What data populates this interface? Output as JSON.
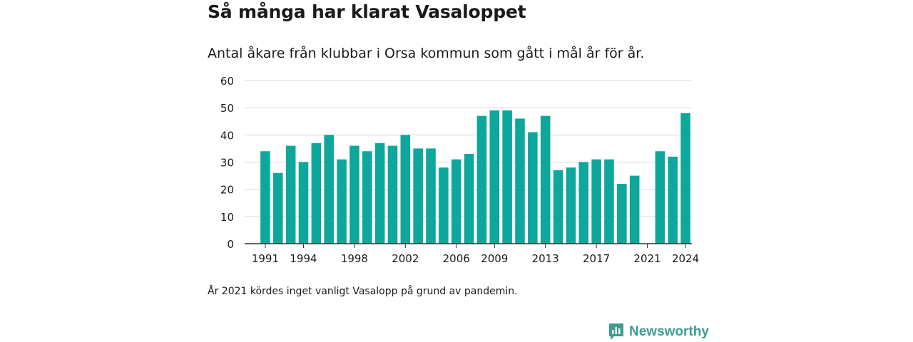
{
  "title": "Så många har klarat Vasaloppet",
  "subtitle": "Antal åkare från klubbar i Orsa kommun som gått i mål år för år.",
  "footnote": "År 2021 kördes inget vanligt Vasalopp på grund av pandemin.",
  "brand": {
    "name": "Newsworthy",
    "color": "#3d9b93"
  },
  "chart_data": {
    "type": "bar",
    "title": "Så många har klarat Vasaloppet",
    "subtitle": "Antal åkare från klubbar i Orsa kommun som gått i mål år för år.",
    "xlabel": "",
    "ylabel": "",
    "bar_color": "#0ea79b",
    "categories": [
      1991,
      1992,
      1993,
      1994,
      1995,
      1996,
      1997,
      1998,
      1999,
      2000,
      2001,
      2002,
      2003,
      2004,
      2005,
      2006,
      2007,
      2008,
      2009,
      2010,
      2011,
      2012,
      2013,
      2014,
      2015,
      2016,
      2017,
      2018,
      2019,
      2020,
      2021,
      2022,
      2023,
      2024
    ],
    "values": [
      34,
      26,
      36,
      30,
      37,
      40,
      31,
      36,
      34,
      37,
      36,
      40,
      35,
      35,
      28,
      31,
      33,
      47,
      49,
      49,
      46,
      41,
      47,
      27,
      28,
      30,
      31,
      31,
      22,
      25,
      null,
      34,
      32,
      48
    ],
    "x_tick_labels": [
      "1991",
      "1994",
      "1998",
      "2002",
      "2006",
      "2009",
      "2013",
      "2017",
      "2021",
      "2024"
    ],
    "y_ticks": [
      0,
      10,
      20,
      30,
      40,
      50,
      60
    ],
    "ylim": [
      0,
      60
    ],
    "grid": true
  }
}
